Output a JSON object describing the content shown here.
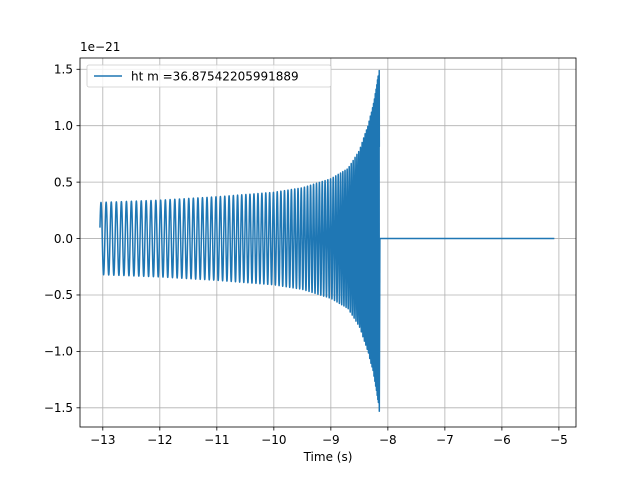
{
  "chart_data": {
    "type": "line",
    "title": "",
    "xlabel": "Time (s)",
    "ylabel": "",
    "y_offset_label": "1e−21",
    "xlim": [
      -13.4,
      -4.7
    ],
    "ylim": [
      -1.67,
      1.6
    ],
    "x_ticks": [
      -13,
      -12,
      -11,
      -10,
      -9,
      -8,
      -7,
      -6,
      -5
    ],
    "x_tick_labels": [
      "−13",
      "−12",
      "−11",
      "−10",
      "−9",
      "−8",
      "−7",
      "−6",
      "−5"
    ],
    "y_ticks": [
      -1.5,
      -1.0,
      -0.5,
      0.0,
      0.5,
      1.0,
      1.5
    ],
    "y_tick_labels": [
      "−1.5",
      "−1.0",
      "−0.5",
      "0.0",
      "0.5",
      "1.0",
      "1.5"
    ],
    "grid": true,
    "legend_position": "upper-left",
    "series": [
      {
        "name": "ht m =36.87542205991889",
        "color": "#1f77b4",
        "signal": {
          "t_start": -13.05,
          "t_merger": -8.15,
          "t_end": -5.08,
          "initial_phase_offset": 0.08,
          "envelope": [
            [
              -13.05,
              0.32
            ],
            [
              -12.0,
              0.34
            ],
            [
              -11.0,
              0.37
            ],
            [
              -10.0,
              0.41
            ],
            [
              -9.5,
              0.45
            ],
            [
              -9.0,
              0.53
            ],
            [
              -8.7,
              0.62
            ],
            [
              -8.5,
              0.78
            ],
            [
              -8.35,
              1.0
            ],
            [
              -8.25,
              1.2
            ],
            [
              -8.2,
              1.35
            ],
            [
              -8.17,
              1.45
            ],
            [
              -8.15,
              1.5
            ]
          ],
          "frequency_hz": [
            [
              -13.05,
              11.0
            ],
            [
              -11.0,
              12.8
            ],
            [
              -10.0,
              15.0
            ],
            [
              -9.0,
              21.0
            ],
            [
              -8.5,
              32.0
            ],
            [
              -8.3,
              48.0
            ],
            [
              -8.2,
              75.0
            ],
            [
              -8.15,
              110.0
            ]
          ],
          "peak_positive": 1.45,
          "peak_negative": -1.53,
          "post_merger_value": 0.0
        }
      }
    ]
  }
}
